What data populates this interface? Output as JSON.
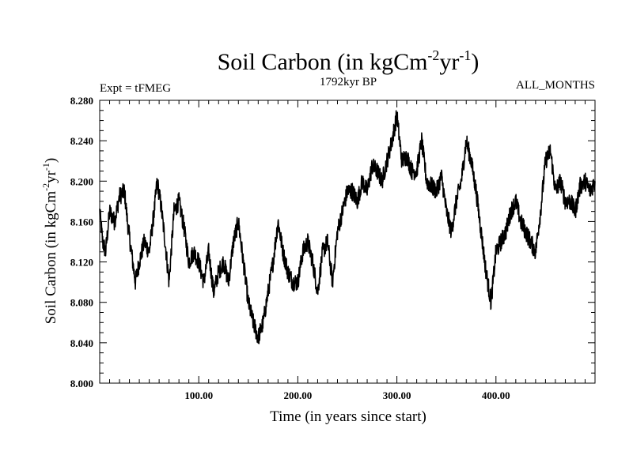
{
  "chart_data": {
    "type": "line",
    "title": {
      "main": "Soil Carbon (in kgCm",
      "sup1": "-2",
      "mid": "yr",
      "sup2": "-1",
      "end": ")"
    },
    "subtitle_left": "Expt = tFMEG",
    "subtitle_center": "1792kyr BP",
    "subtitle_right": "ALL_MONTHS",
    "xlabel": "Time (in years since start)",
    "ylabel": {
      "main": "Soil Carbon (in kgCm",
      "sup1": "-2",
      "mid": "yr",
      "sup2": "-1",
      "end": ")"
    },
    "xlim": [
      0,
      500
    ],
    "ylim": [
      8.0,
      8.28
    ],
    "x_ticks": [
      {
        "value": 100,
        "label": "100.00"
      },
      {
        "value": 200,
        "label": "200.00"
      },
      {
        "value": 300,
        "label": "300.00"
      },
      {
        "value": 400,
        "label": "400.00"
      }
    ],
    "y_ticks": [
      {
        "value": 8.0,
        "label": "8.000"
      },
      {
        "value": 8.04,
        "label": "8.040"
      },
      {
        "value": 8.08,
        "label": "8.080"
      },
      {
        "value": 8.12,
        "label": "8.120"
      },
      {
        "value": 8.16,
        "label": "8.160"
      },
      {
        "value": 8.2,
        "label": "8.200"
      },
      {
        "value": 8.24,
        "label": "8.240"
      },
      {
        "value": 8.28,
        "label": "8.280"
      }
    ],
    "series": [
      {
        "name": "Soil Carbon",
        "color": "#000000",
        "x": [
          0,
          3,
          6,
          10,
          15,
          20,
          25,
          28,
          32,
          36,
          40,
          45,
          50,
          55,
          58,
          62,
          66,
          70,
          75,
          80,
          85,
          90,
          95,
          100,
          105,
          110,
          115,
          120,
          125,
          130,
          135,
          140,
          145,
          150,
          155,
          160,
          165,
          170,
          175,
          180,
          185,
          190,
          195,
          200,
          205,
          210,
          215,
          220,
          225,
          230,
          235,
          240,
          245,
          250,
          255,
          260,
          265,
          270,
          275,
          280,
          285,
          290,
          295,
          300,
          305,
          310,
          315,
          320,
          325,
          330,
          335,
          340,
          345,
          350,
          355,
          360,
          365,
          370,
          375,
          380,
          385,
          390,
          395,
          400,
          405,
          410,
          415,
          420,
          425,
          430,
          435,
          440,
          445,
          450,
          455,
          460,
          465,
          470,
          475,
          480,
          485,
          490,
          495,
          500
        ],
        "values": [
          8.17,
          8.14,
          8.13,
          8.17,
          8.16,
          8.185,
          8.19,
          8.16,
          8.13,
          8.1,
          8.12,
          8.14,
          8.13,
          8.17,
          8.2,
          8.175,
          8.14,
          8.1,
          8.17,
          8.18,
          8.155,
          8.12,
          8.13,
          8.12,
          8.1,
          8.13,
          8.09,
          8.11,
          8.12,
          8.1,
          8.14,
          8.16,
          8.12,
          8.08,
          8.06,
          8.045,
          8.06,
          8.09,
          8.12,
          8.16,
          8.13,
          8.11,
          8.1,
          8.1,
          8.13,
          8.14,
          8.12,
          8.09,
          8.13,
          8.14,
          8.1,
          8.15,
          8.17,
          8.19,
          8.19,
          8.18,
          8.2,
          8.19,
          8.215,
          8.21,
          8.2,
          8.22,
          8.24,
          8.265,
          8.22,
          8.225,
          8.21,
          8.21,
          8.24,
          8.2,
          8.195,
          8.19,
          8.205,
          8.17,
          8.15,
          8.18,
          8.2,
          8.24,
          8.22,
          8.19,
          8.15,
          8.11,
          8.08,
          8.13,
          8.14,
          8.15,
          8.17,
          8.18,
          8.16,
          8.15,
          8.14,
          8.13,
          8.17,
          8.22,
          8.23,
          8.19,
          8.2,
          8.18,
          8.18,
          8.17,
          8.195,
          8.2,
          8.19,
          8.2
        ]
      }
    ]
  }
}
